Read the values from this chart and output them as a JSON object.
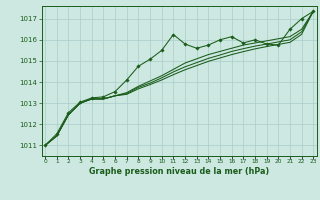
{
  "title": "Graphe pression niveau de la mer (hPa)",
  "xlabel_hours": [
    0,
    1,
    2,
    3,
    4,
    5,
    6,
    7,
    8,
    9,
    10,
    11,
    12,
    13,
    14,
    15,
    16,
    17,
    18,
    19,
    20,
    21,
    22,
    23
  ],
  "ylim": [
    1010.5,
    1017.6
  ],
  "yticks": [
    1011,
    1012,
    1013,
    1014,
    1015,
    1016,
    1017
  ],
  "background_color": "#cce8e0",
  "grid_color": "#aacccc",
  "line_color": "#1a5c1a",
  "line1_marked": [
    1011.0,
    1011.55,
    1012.55,
    1013.05,
    1013.25,
    1013.3,
    1013.55,
    1014.1,
    1014.75,
    1015.08,
    1015.5,
    1016.25,
    1015.8,
    1015.6,
    1015.75,
    1016.0,
    1016.15,
    1015.85,
    1016.0,
    1015.8,
    1015.75,
    1016.5,
    1017.0,
    1017.35
  ],
  "line2": [
    1011.0,
    1011.45,
    1012.45,
    1013.0,
    1013.2,
    1013.2,
    1013.35,
    1013.5,
    1013.8,
    1014.05,
    1014.3,
    1014.6,
    1014.9,
    1015.1,
    1015.3,
    1015.45,
    1015.6,
    1015.75,
    1015.85,
    1015.95,
    1016.05,
    1016.15,
    1016.5,
    1017.35
  ],
  "line3": [
    1011.0,
    1011.45,
    1012.45,
    1013.0,
    1013.2,
    1013.2,
    1013.35,
    1013.45,
    1013.75,
    1013.95,
    1014.2,
    1014.48,
    1014.72,
    1014.92,
    1015.12,
    1015.28,
    1015.45,
    1015.58,
    1015.7,
    1015.8,
    1015.9,
    1016.0,
    1016.38,
    1017.35
  ],
  "line4": [
    1011.0,
    1011.45,
    1012.45,
    1013.0,
    1013.2,
    1013.2,
    1013.35,
    1013.42,
    1013.68,
    1013.88,
    1014.1,
    1014.35,
    1014.58,
    1014.78,
    1014.98,
    1015.14,
    1015.3,
    1015.44,
    1015.57,
    1015.68,
    1015.78,
    1015.88,
    1016.26,
    1017.35
  ]
}
